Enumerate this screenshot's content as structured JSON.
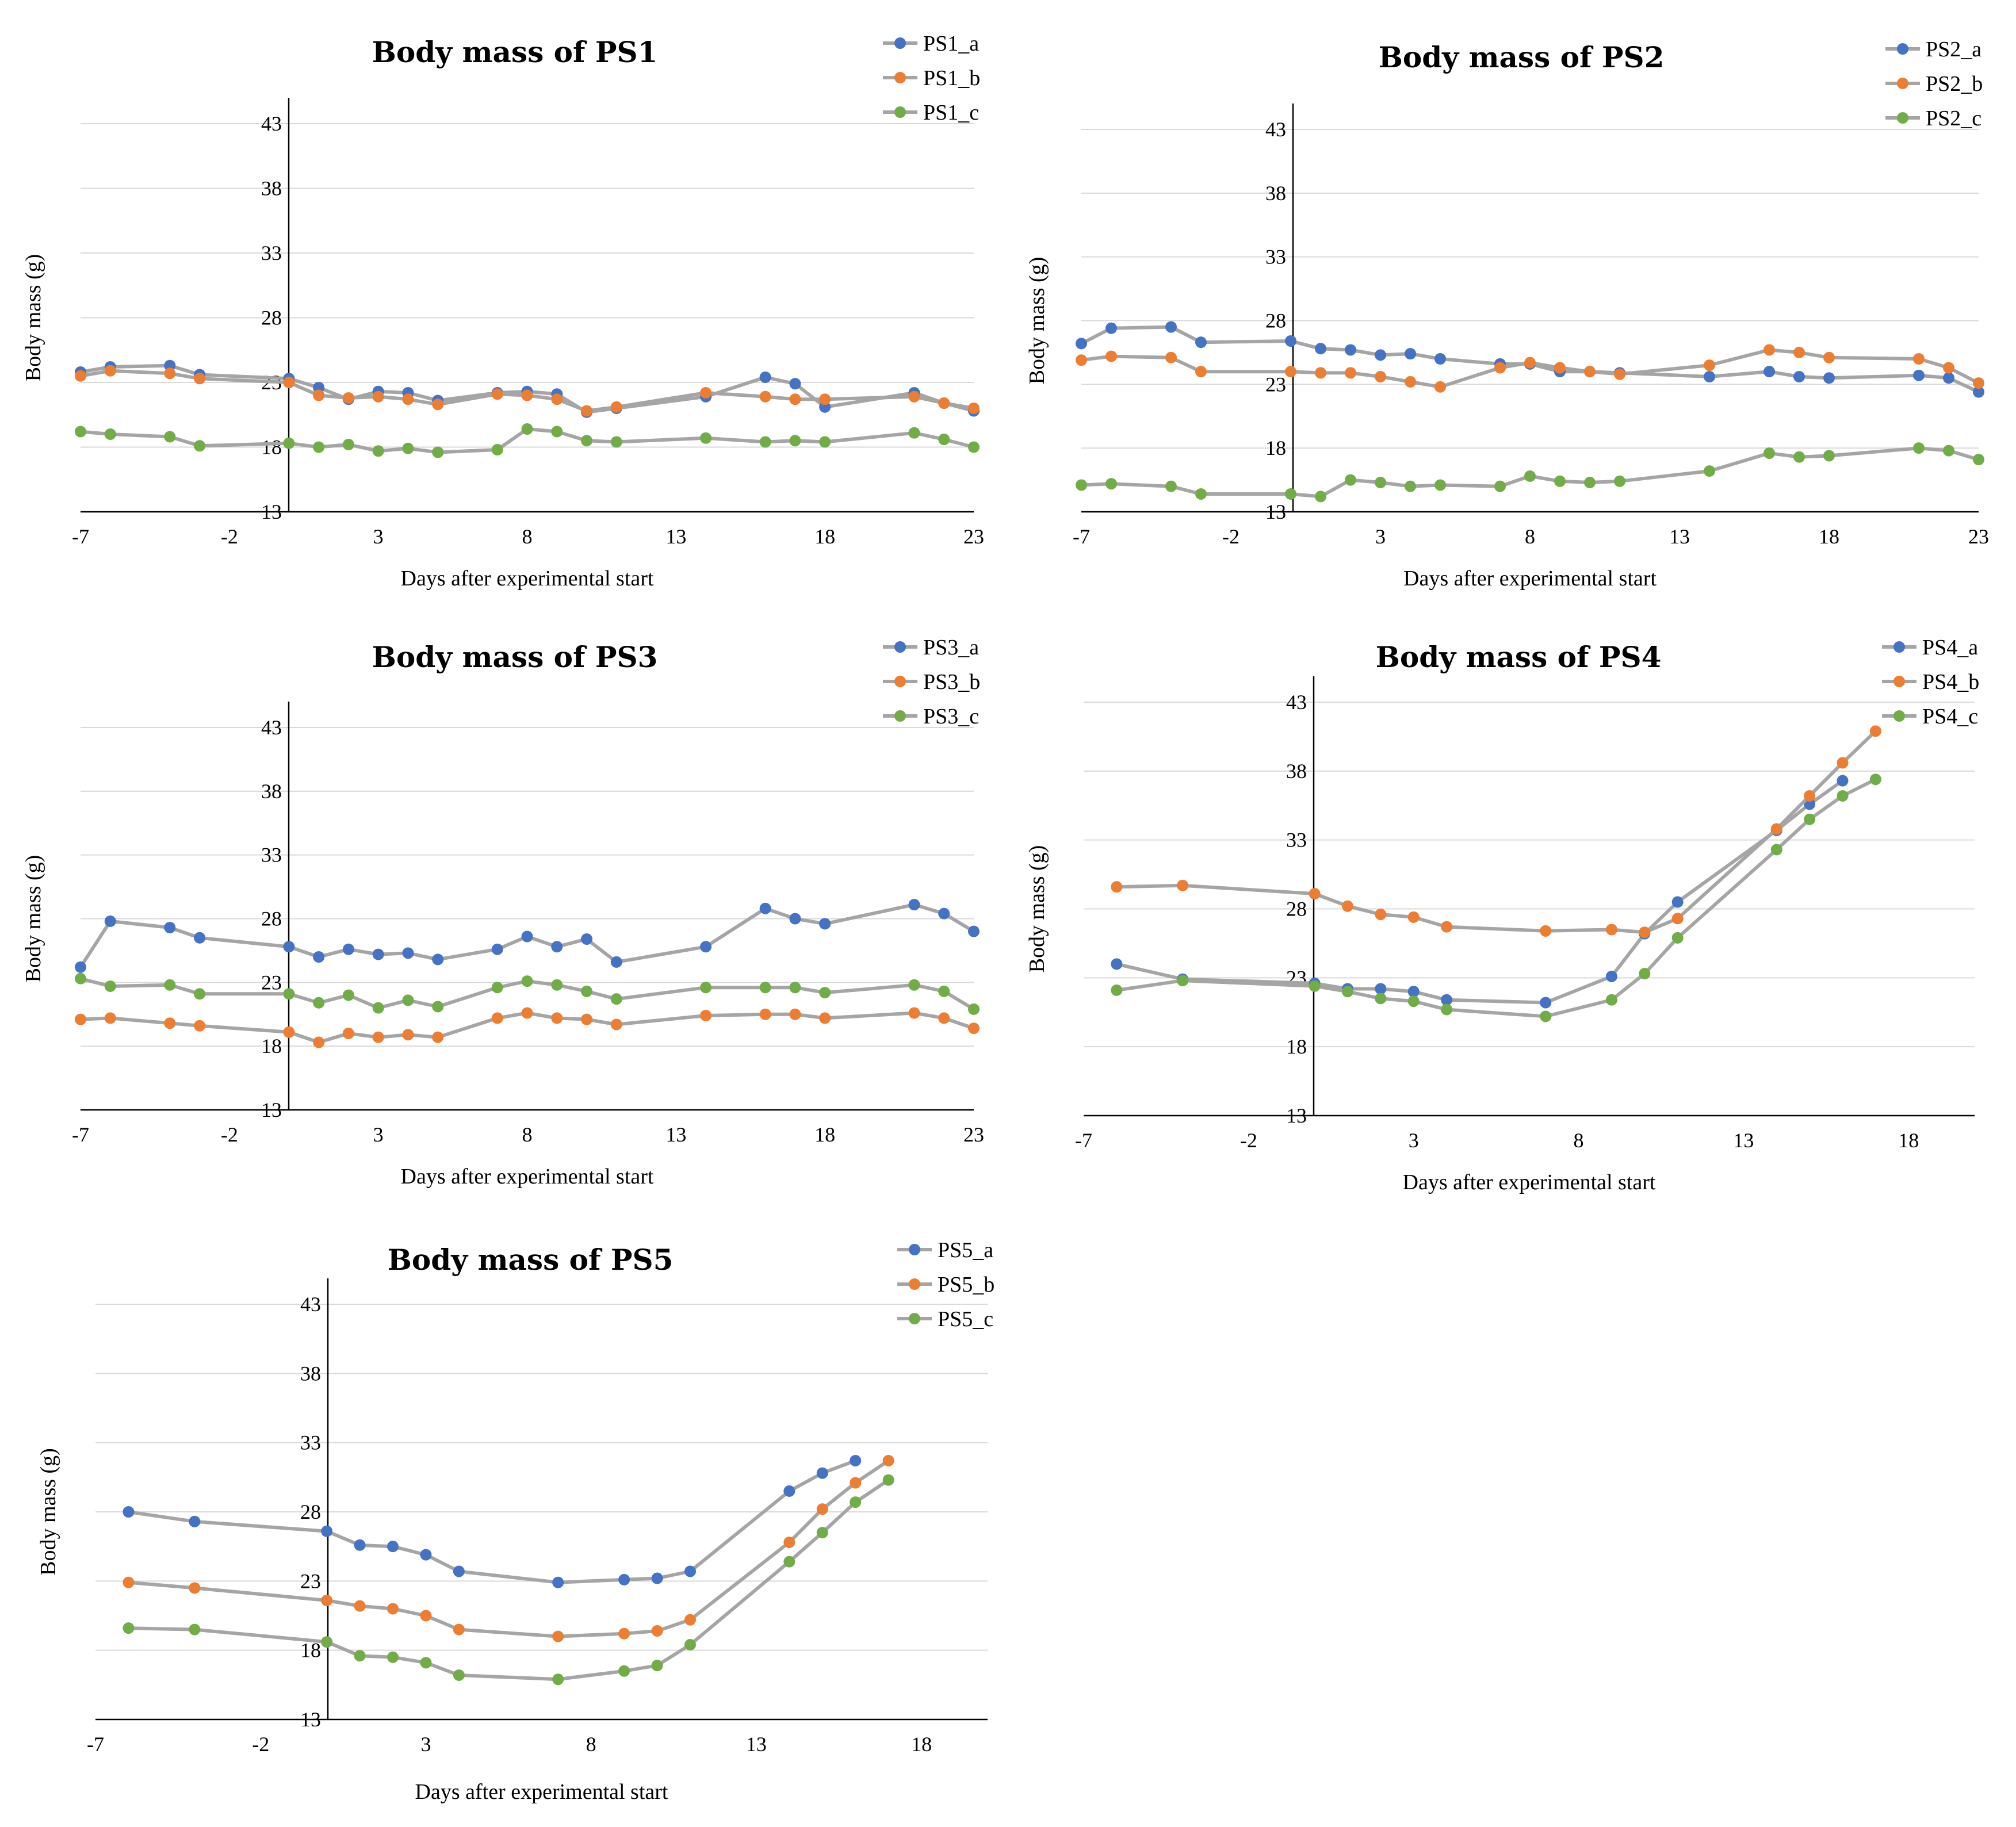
{
  "colors": {
    "a": "#4472c4",
    "b": "#ed7d31",
    "c": "#70ad47",
    "line": "#a5a5a5",
    "grid": "#d9d9d9"
  },
  "chart_data": [
    {
      "type": "line",
      "title": "Body mass of PS1",
      "xlabel": "Days after experimental start",
      "ylabel": "Body mass (g)",
      "xlim": [
        -7,
        23
      ],
      "ylim": [
        13,
        43
      ],
      "xticks": [
        "-7",
        "-2",
        "3",
        "8",
        "13",
        "18",
        "23"
      ],
      "yticks": [
        "13",
        "18",
        "23",
        "28",
        "33",
        "38",
        "43"
      ],
      "legend": "top-right",
      "series": [
        {
          "name": "PS1_a",
          "x": [
            -7,
            -6,
            -4,
            -3,
            0,
            1,
            2,
            3,
            4,
            5,
            7,
            8,
            9,
            10,
            11,
            14,
            16,
            17,
            18,
            21,
            22,
            23
          ],
          "y": [
            23.8,
            24.2,
            24.3,
            23.6,
            23.3,
            22.6,
            21.7,
            22.3,
            22.2,
            21.6,
            22.2,
            22.3,
            22.1,
            20.7,
            21.0,
            21.9,
            23.4,
            22.9,
            21.1,
            22.2,
            21.4,
            20.8
          ]
        },
        {
          "name": "PS1_b",
          "x": [
            -7,
            -6,
            -4,
            -3,
            0,
            1,
            2,
            3,
            4,
            5,
            7,
            8,
            9,
            10,
            11,
            14,
            16,
            17,
            18,
            21,
            22,
            23
          ],
          "y": [
            23.5,
            23.9,
            23.7,
            23.3,
            23.0,
            22.0,
            21.8,
            21.9,
            21.7,
            21.3,
            22.1,
            22.0,
            21.7,
            20.8,
            21.1,
            22.2,
            21.9,
            21.7,
            21.7,
            21.9,
            21.4,
            21.0
          ]
        },
        {
          "name": "PS1_c",
          "x": [
            -7,
            -6,
            -4,
            -3,
            0,
            1,
            2,
            3,
            4,
            5,
            7,
            8,
            9,
            10,
            11,
            14,
            16,
            17,
            18,
            21,
            22,
            23
          ],
          "y": [
            19.2,
            19.0,
            18.8,
            18.1,
            18.3,
            18.0,
            18.2,
            17.7,
            17.9,
            17.6,
            17.8,
            19.4,
            19.2,
            18.5,
            18.4,
            18.7,
            18.4,
            18.5,
            18.4,
            19.1,
            18.6,
            18.0
          ]
        }
      ]
    },
    {
      "type": "line",
      "title": "Body mass of PS2",
      "xlabel": "Days after experimental start",
      "ylabel": "Body mass (g)",
      "xlim": [
        -7,
        23
      ],
      "ylim": [
        13,
        43
      ],
      "xticks": [
        "-7",
        "-2",
        "3",
        "8",
        "13",
        "18",
        "23"
      ],
      "yticks": [
        "13",
        "18",
        "23",
        "28",
        "33",
        "38",
        "43"
      ],
      "legend": "top-right",
      "series": [
        {
          "name": "PS2_a",
          "x": [
            -7,
            -6,
            -4,
            -3,
            0,
            1,
            2,
            3,
            4,
            5,
            7,
            8,
            9,
            10,
            11,
            14,
            16,
            17,
            18,
            21,
            22,
            23
          ],
          "y": [
            26.2,
            27.4,
            27.5,
            26.3,
            26.4,
            25.8,
            25.7,
            25.3,
            25.4,
            25.0,
            24.6,
            24.6,
            24.0,
            24.0,
            23.9,
            23.6,
            24.0,
            23.6,
            23.5,
            23.7,
            23.5,
            22.4
          ]
        },
        {
          "name": "PS2_b",
          "x": [
            -7,
            -6,
            -4,
            -3,
            0,
            1,
            2,
            3,
            4,
            5,
            7,
            8,
            9,
            10,
            11,
            14,
            16,
            17,
            18,
            21,
            22,
            23
          ],
          "y": [
            24.9,
            25.2,
            25.1,
            24.0,
            24.0,
            23.9,
            23.9,
            23.6,
            23.2,
            22.8,
            24.3,
            24.7,
            24.3,
            24.0,
            23.8,
            24.5,
            25.7,
            25.5,
            25.1,
            25.0,
            24.3,
            23.1
          ]
        },
        {
          "name": "PS2_c",
          "x": [
            -7,
            -6,
            -4,
            -3,
            0,
            1,
            2,
            3,
            4,
            5,
            7,
            8,
            9,
            10,
            11,
            14,
            16,
            17,
            18,
            21,
            22,
            23
          ],
          "y": [
            15.1,
            15.2,
            15.0,
            14.4,
            14.4,
            14.2,
            15.5,
            15.3,
            15.0,
            15.1,
            15.0,
            15.8,
            15.4,
            15.3,
            15.4,
            16.2,
            17.6,
            17.3,
            17.4,
            18.0,
            17.8,
            17.1
          ]
        }
      ]
    },
    {
      "type": "line",
      "title": "Body mass of PS3",
      "xlabel": "Days after experimental start",
      "ylabel": "Body mass (g)",
      "xlim": [
        -7,
        23
      ],
      "ylim": [
        13,
        43
      ],
      "xticks": [
        "-7",
        "-2",
        "3",
        "8",
        "13",
        "18",
        "23"
      ],
      "yticks": [
        "13",
        "18",
        "23",
        "28",
        "33",
        "38",
        "43"
      ],
      "legend": "top-right",
      "series": [
        {
          "name": "PS3_a",
          "x": [
            -7,
            -6,
            -4,
            -3,
            0,
            1,
            2,
            3,
            4,
            5,
            7,
            8,
            9,
            10,
            11,
            14,
            16,
            17,
            18,
            21,
            22,
            23
          ],
          "y": [
            24.2,
            27.8,
            27.3,
            26.5,
            25.8,
            25.0,
            25.6,
            25.2,
            25.3,
            24.8,
            25.6,
            26.6,
            25.8,
            26.4,
            24.6,
            25.8,
            28.8,
            28.0,
            27.6,
            29.1,
            28.4,
            27.0
          ]
        },
        {
          "name": "PS3_b",
          "x": [
            -7,
            -6,
            -4,
            -3,
            0,
            1,
            2,
            3,
            4,
            5,
            7,
            8,
            9,
            10,
            11,
            14,
            16,
            17,
            18,
            21,
            22,
            23
          ],
          "y": [
            20.1,
            20.2,
            19.8,
            19.6,
            19.1,
            18.3,
            19.0,
            18.7,
            18.9,
            18.7,
            20.2,
            20.6,
            20.2,
            20.1,
            19.7,
            20.4,
            20.5,
            20.5,
            20.2,
            20.6,
            20.2,
            19.4
          ]
        },
        {
          "name": "PS3_c",
          "x": [
            -7,
            -6,
            -4,
            -3,
            0,
            1,
            2,
            3,
            4,
            5,
            7,
            8,
            9,
            10,
            11,
            14,
            16,
            17,
            18,
            21,
            22,
            23
          ],
          "y": [
            23.3,
            22.7,
            22.8,
            22.1,
            22.1,
            21.4,
            22.0,
            21.0,
            21.6,
            21.1,
            22.6,
            23.1,
            22.8,
            22.3,
            21.7,
            22.6,
            22.6,
            22.6,
            22.2,
            22.8,
            22.3,
            20.9
          ]
        }
      ]
    },
    {
      "type": "line",
      "title": "Body mass of PS4",
      "xlabel": "Days after experimental start",
      "ylabel": "Body mass (g)",
      "xlim": [
        -7,
        20
      ],
      "ylim": [
        13,
        43
      ],
      "xticks": [
        "-7",
        "-2",
        "3",
        "8",
        "13",
        "18"
      ],
      "yticks": [
        "13",
        "18",
        "23",
        "28",
        "33",
        "38",
        "43"
      ],
      "legend": "top-right",
      "series": [
        {
          "name": "PS4_a",
          "x": [
            -6,
            -4,
            0,
            1,
            2,
            3,
            4,
            7,
            9,
            10,
            11,
            14,
            15,
            16
          ],
          "y": [
            24.0,
            22.9,
            22.6,
            22.2,
            22.2,
            22.0,
            21.4,
            21.2,
            23.1,
            26.2,
            28.5,
            33.7,
            35.6,
            37.3
          ]
        },
        {
          "name": "PS4_b",
          "x": [
            -6,
            -4,
            0,
            1,
            2,
            3,
            4,
            7,
            9,
            10,
            11,
            14,
            15,
            16,
            17
          ],
          "y": [
            29.6,
            29.7,
            29.1,
            28.2,
            27.6,
            27.4,
            26.7,
            26.4,
            26.5,
            26.3,
            27.3,
            33.8,
            36.2,
            38.6,
            40.9
          ]
        },
        {
          "name": "PS4_c",
          "x": [
            -6,
            -4,
            0,
            1,
            2,
            3,
            4,
            7,
            9,
            10,
            11,
            14,
            15,
            16,
            17
          ],
          "y": [
            22.1,
            22.8,
            22.4,
            22.0,
            21.5,
            21.3,
            20.7,
            20.2,
            21.4,
            23.3,
            25.9,
            32.3,
            34.5,
            36.2,
            37.4
          ]
        }
      ]
    },
    {
      "type": "line",
      "title": "Body mass of PS5",
      "xlabel": "Days after experimental start",
      "ylabel": "Body mass (g)",
      "xlim": [
        -7,
        20
      ],
      "ylim": [
        13,
        43
      ],
      "xticks": [
        "-7",
        "-2",
        "3",
        "8",
        "13",
        "18"
      ],
      "yticks": [
        "13",
        "18",
        "23",
        "28",
        "33",
        "38",
        "43"
      ],
      "legend": "top-right",
      "series": [
        {
          "name": "PS5_a",
          "x": [
            -6,
            -4,
            0,
            1,
            2,
            3,
            4,
            7,
            9,
            10,
            11,
            14,
            15,
            16
          ],
          "y": [
            28.0,
            27.3,
            26.6,
            25.6,
            25.5,
            24.9,
            23.7,
            22.9,
            23.1,
            23.2,
            23.7,
            29.5,
            30.8,
            31.7
          ]
        },
        {
          "name": "PS5_b",
          "x": [
            -6,
            -4,
            0,
            1,
            2,
            3,
            4,
            7,
            9,
            10,
            11,
            14,
            15,
            16,
            17
          ],
          "y": [
            22.9,
            22.5,
            21.6,
            21.2,
            21.0,
            20.5,
            19.5,
            19.0,
            19.2,
            19.4,
            20.2,
            25.8,
            28.2,
            30.1,
            31.7
          ]
        },
        {
          "name": "PS5_c",
          "x": [
            -6,
            -4,
            0,
            1,
            2,
            3,
            4,
            7,
            9,
            10,
            11,
            14,
            15,
            16,
            17
          ],
          "y": [
            19.6,
            19.5,
            18.6,
            17.6,
            17.5,
            17.1,
            16.2,
            15.9,
            16.5,
            16.9,
            18.4,
            24.4,
            26.5,
            28.7,
            30.3
          ]
        }
      ]
    }
  ]
}
